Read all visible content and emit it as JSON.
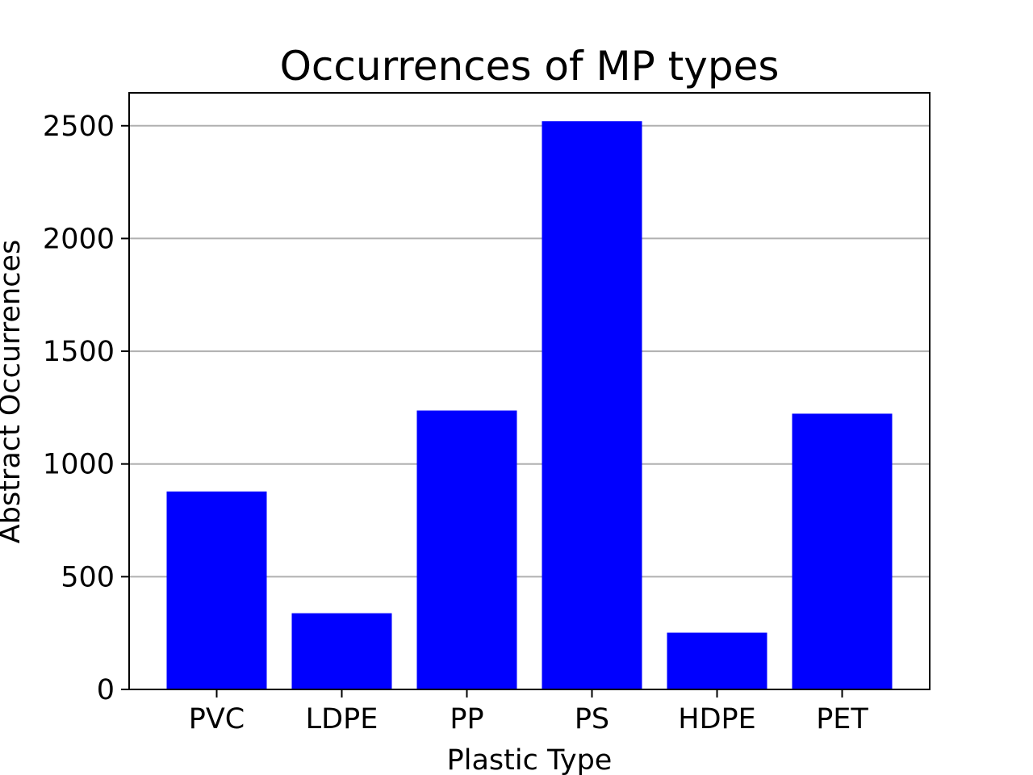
{
  "chart_data": {
    "type": "bar",
    "title": "Occurrences of MP types",
    "xlabel": "Plastic Type",
    "ylabel": "Abstract Occurrences",
    "categories": [
      "PVC",
      "LDPE",
      "PP",
      "PS",
      "HDPE",
      "PET"
    ],
    "values": [
      878,
      338,
      1237,
      2520,
      252,
      1223
    ],
    "ylim": [
      0,
      2646
    ],
    "yticks": [
      0,
      500,
      1000,
      1500,
      2000,
      2500
    ],
    "grid": "y",
    "bar_color": "#0000ff",
    "grid_color": "#b0b0b0"
  }
}
